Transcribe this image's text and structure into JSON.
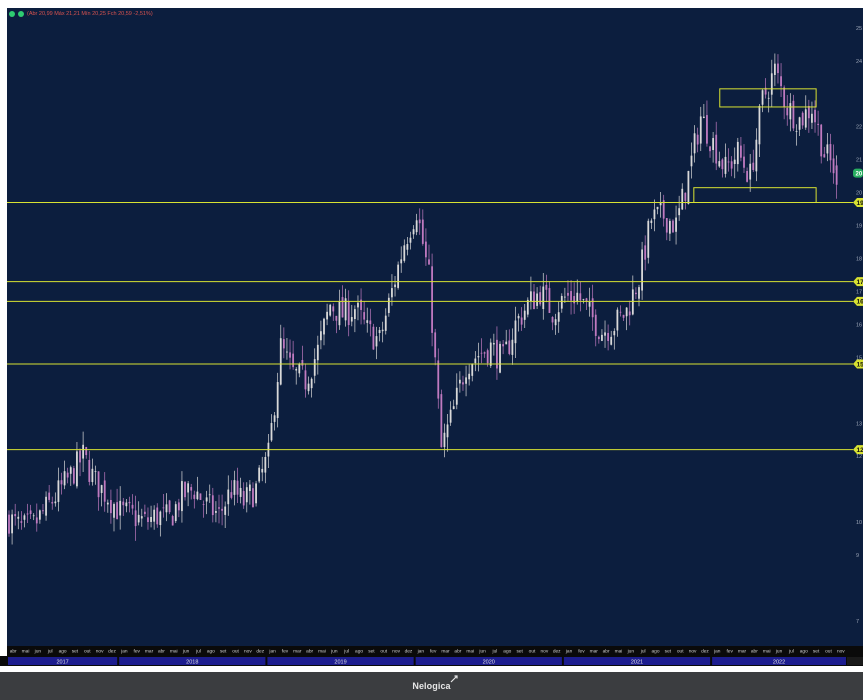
{
  "quote_bar": {
    "text": "(Abr 20,99 Máx 21,21 Mín 20,25 Fch 20,59 -2,51%)",
    "icon_colors": [
      "#2ecc71",
      "#2ecc71"
    ]
  },
  "footer": {
    "brand": "Nelogica"
  },
  "colors": {
    "background": "#0c1e3e",
    "candle_up": "#d9d9d9",
    "candle_down": "#c07ac0",
    "level_line": "#d8e232",
    "year_band": "#1d1d8f",
    "last_price_badge": "#27ae60"
  },
  "chart_data": {
    "type": "candlestick",
    "title": "",
    "price_axis_ticks": [
      "25",
      "24",
      "22",
      "21",
      "20",
      "19",
      "18",
      "17",
      "16",
      "15",
      "13",
      "12",
      "10",
      "9",
      "7"
    ],
    "price_axis_values": [
      25,
      24,
      22,
      21,
      20,
      19,
      18,
      17,
      16,
      15,
      13,
      12,
      10,
      9,
      7
    ],
    "ylim": [
      6.3,
      25.3
    ],
    "xlim": [
      "2017-04",
      "2022-12"
    ],
    "months": [
      "abr",
      "mai",
      "jun",
      "jul",
      "ago",
      "set",
      "out",
      "nov",
      "dez",
      "jan",
      "fev",
      "mar",
      "abr",
      "mai",
      "jun",
      "jul",
      "ago",
      "set",
      "out",
      "nov",
      "dez",
      "jan",
      "fev",
      "mar",
      "abr",
      "mai",
      "jun",
      "jul",
      "ago",
      "set",
      "out",
      "nov",
      "dez",
      "jan",
      "fev",
      "mar",
      "abr",
      "mai",
      "jun",
      "jul",
      "ago",
      "set",
      "out",
      "nov",
      "dez",
      "jan",
      "fev",
      "mar",
      "abr",
      "mai",
      "jun",
      "jul",
      "ago",
      "set",
      "out",
      "nov",
      "dez",
      "jan",
      "fev",
      "mar",
      "abr",
      "mai",
      "jun",
      "jul",
      "ago",
      "set",
      "out",
      "nov"
    ],
    "years": [
      {
        "label": "2017",
        "start": 0,
        "end": 8
      },
      {
        "label": "2018",
        "start": 9,
        "end": 20
      },
      {
        "label": "2019",
        "start": 21,
        "end": 32
      },
      {
        "label": "2020",
        "start": 33,
        "end": 44
      },
      {
        "label": "2021",
        "start": 45,
        "end": 56
      },
      {
        "label": "2022",
        "start": 57,
        "end": 67
      }
    ],
    "horizontal_levels": [
      {
        "label": "19",
        "value": 19.7
      },
      {
        "label": "17",
        "value": 17.3
      },
      {
        "label": "16",
        "value": 16.7
      },
      {
        "label": "15",
        "value": 14.8
      },
      {
        "label": "12",
        "value": 12.2
      }
    ],
    "zones": [
      {
        "x_start": 57.7,
        "x_end": 65.5,
        "y_low": 22.6,
        "y_high": 23.15
      },
      {
        "x_start": 55.6,
        "x_end": 65.5,
        "y_low": 19.7,
        "y_high": 20.15
      }
    ],
    "last_price": {
      "label": "20",
      "value": 20.59
    },
    "price_path": [
      {
        "m": 0,
        "p": 10.1
      },
      {
        "m": 1,
        "p": 9.8
      },
      {
        "m": 2,
        "p": 9.9
      },
      {
        "m": 3,
        "p": 10.4
      },
      {
        "m": 4,
        "p": 10.9
      },
      {
        "m": 5,
        "p": 11.4
      },
      {
        "m": 6,
        "p": 12.0
      },
      {
        "m": 7,
        "p": 11.2
      },
      {
        "m": 8,
        "p": 10.8
      },
      {
        "m": 9,
        "p": 10.3
      },
      {
        "m": 10,
        "p": 10.2
      },
      {
        "m": 11,
        "p": 10.0
      },
      {
        "m": 12,
        "p": 10.2
      },
      {
        "m": 13,
        "p": 10.1
      },
      {
        "m": 14,
        "p": 10.8
      },
      {
        "m": 15,
        "p": 11.0
      },
      {
        "m": 16,
        "p": 10.5
      },
      {
        "m": 17,
        "p": 10.2
      },
      {
        "m": 18,
        "p": 11.0
      },
      {
        "m": 19,
        "p": 10.6
      },
      {
        "m": 20,
        "p": 11.0
      },
      {
        "m": 21,
        "p": 12.0
      },
      {
        "m": 22,
        "p": 15.3
      },
      {
        "m": 23,
        "p": 14.5
      },
      {
        "m": 24,
        "p": 14.3
      },
      {
        "m": 25,
        "p": 15.2
      },
      {
        "m": 26,
        "p": 16.6
      },
      {
        "m": 27,
        "p": 16.3
      },
      {
        "m": 28,
        "p": 16.5
      },
      {
        "m": 29,
        "p": 15.8
      },
      {
        "m": 30,
        "p": 15.5
      },
      {
        "m": 31,
        "p": 17.0
      },
      {
        "m": 32,
        "p": 18.5
      },
      {
        "m": 33,
        "p": 19.5
      },
      {
        "m": 34,
        "p": 17.4
      },
      {
        "m": 35,
        "p": 12.2
      },
      {
        "m": 36,
        "p": 13.4
      },
      {
        "m": 37,
        "p": 14.8
      },
      {
        "m": 38,
        "p": 15.1
      },
      {
        "m": 39,
        "p": 15.3
      },
      {
        "m": 40,
        "p": 14.9
      },
      {
        "m": 41,
        "p": 16.0
      },
      {
        "m": 42,
        "p": 16.6
      },
      {
        "m": 43,
        "p": 17.0
      },
      {
        "m": 44,
        "p": 16.4
      },
      {
        "m": 45,
        "p": 16.8
      },
      {
        "m": 46,
        "p": 16.9
      },
      {
        "m": 47,
        "p": 16.3
      },
      {
        "m": 48,
        "p": 15.8
      },
      {
        "m": 49,
        "p": 16.0
      },
      {
        "m": 50,
        "p": 16.4
      },
      {
        "m": 51,
        "p": 17.4
      },
      {
        "m": 52,
        "p": 19.2
      },
      {
        "m": 53,
        "p": 19.3
      },
      {
        "m": 54,
        "p": 19.0
      },
      {
        "m": 55,
        "p": 20.5
      },
      {
        "m": 56,
        "p": 22.3
      },
      {
        "m": 57,
        "p": 21.5
      },
      {
        "m": 58,
        "p": 20.7
      },
      {
        "m": 59,
        "p": 21.2
      },
      {
        "m": 60,
        "p": 20.5
      },
      {
        "m": 61,
        "p": 22.8
      },
      {
        "m": 62,
        "p": 23.7
      },
      {
        "m": 63,
        "p": 22.6
      },
      {
        "m": 64,
        "p": 22.2
      },
      {
        "m": 65,
        "p": 22.6
      },
      {
        "m": 66,
        "p": 21.2
      },
      {
        "m": 67,
        "p": 20.6
      }
    ]
  }
}
